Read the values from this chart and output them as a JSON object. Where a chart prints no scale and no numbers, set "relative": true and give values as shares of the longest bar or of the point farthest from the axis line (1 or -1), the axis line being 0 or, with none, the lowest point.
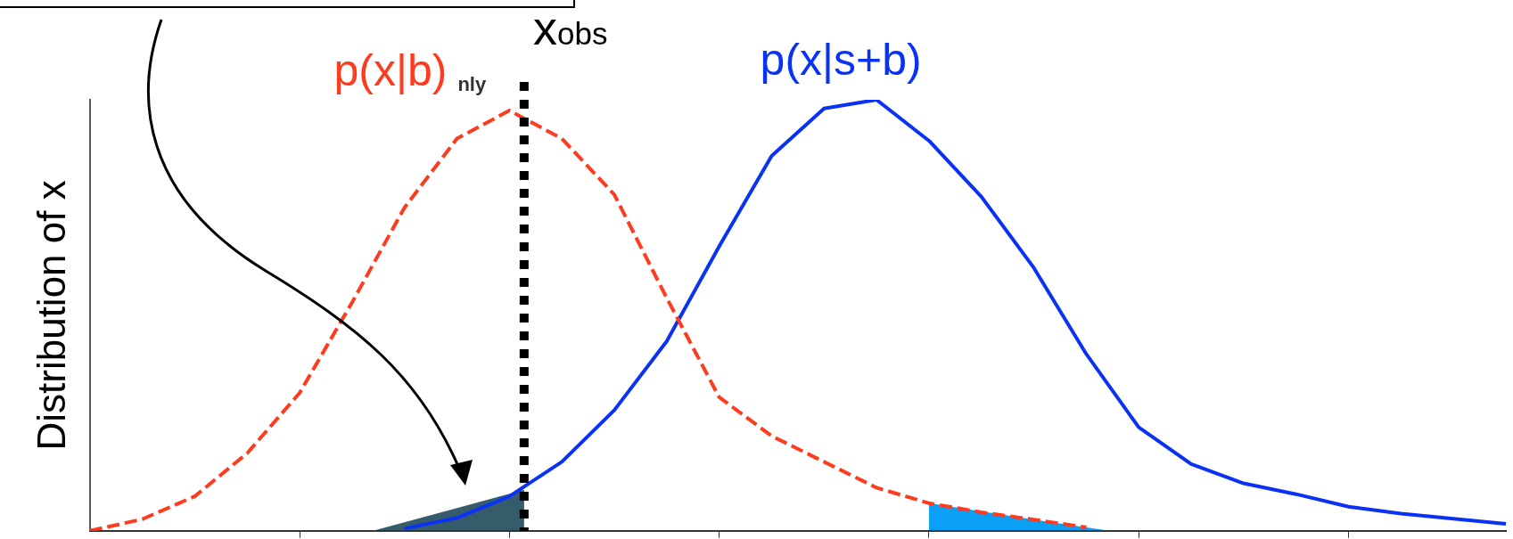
{
  "chart_data": {
    "type": "line",
    "relative": true,
    "ylabel": "Distribution of x",
    "categories": [
      null,
      null,
      null,
      null,
      null,
      null,
      null,
      null,
      null,
      null,
      null,
      null,
      null,
      null,
      null,
      null,
      null,
      null,
      null,
      null,
      null,
      null,
      null,
      null,
      null,
      null,
      null,
      null
    ],
    "legend": false,
    "marker": "none",
    "annotations": [
      "x$_{obs}$",
      "nly"
    ],
    "series": [
      {
        "name": "p(x|b)",
        "color": "#ff3b1f",
        "line_style": "dashed",
        "values": [
          0,
          0.027,
          0.08,
          0.18,
          0.32,
          0.53,
          0.75,
          0.91,
          0.975,
          0.91,
          0.78,
          0.54,
          0.31,
          0.22,
          0.16,
          0.1,
          0.064,
          0.043,
          0.026,
          0.008,
          null,
          null,
          null,
          null,
          null,
          null,
          null,
          null
        ]
      },
      {
        "name": "p(x|s+b)",
        "color": "#0a32f5",
        "line_style": "solid",
        "values": [
          null,
          null,
          null,
          null,
          null,
          null,
          0.005,
          0.03,
          0.08,
          0.16,
          0.28,
          0.44,
          0.66,
          0.87,
          0.98,
          1,
          0.905,
          0.775,
          0.61,
          0.41,
          0.24,
          0.155,
          0.11,
          0.085,
          0.056,
          0.04,
          0.028,
          0.016
        ]
      }
    ]
  }
}
